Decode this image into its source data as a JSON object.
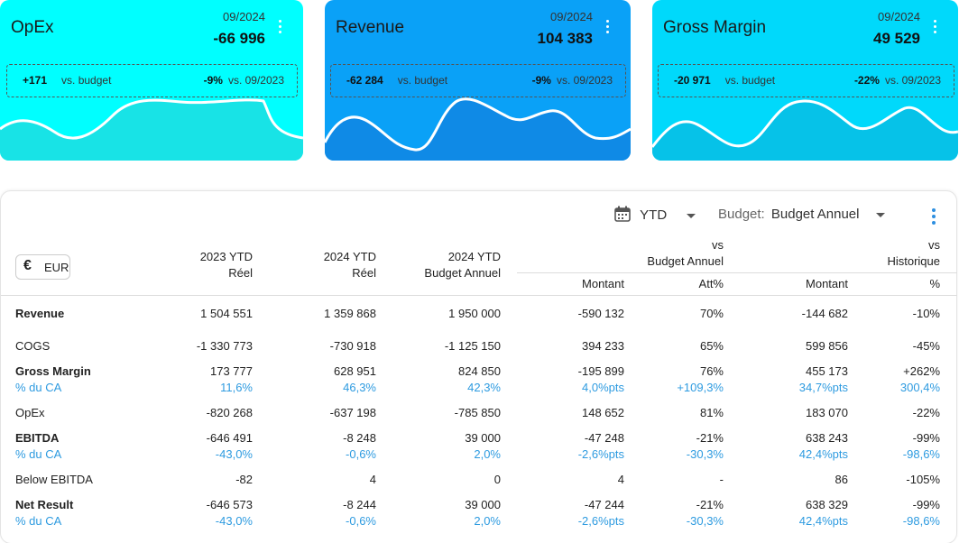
{
  "cards": [
    {
      "title": "OpEx",
      "date": "09/2024",
      "value": "-66 996",
      "vs_budget_value": "+171",
      "vs_budget_label": "vs. budget",
      "vs_prev_value": "-9%",
      "vs_prev_label": "vs. 09/2023",
      "bg": "#00ffff",
      "wave": "#18e3e6"
    },
    {
      "title": "Revenue",
      "date": "09/2024",
      "value": "104 383",
      "vs_budget_value": "-62 284",
      "vs_budget_label": "vs. budget",
      "vs_prev_value": "-9%",
      "vs_prev_label": "vs. 09/2023",
      "bg": "#0aa1f7",
      "wave": "#0f8ae6"
    },
    {
      "title": "Gross Margin",
      "date": "09/2024",
      "value": "49 529",
      "vs_budget_value": "-20 971",
      "vs_budget_label": "vs. budget",
      "vs_prev_value": "-22%",
      "vs_prev_label": "vs. 09/2023",
      "bg": "#00d9fb",
      "wave": "#06c2e8"
    }
  ],
  "toolbar": {
    "period": "YTD",
    "budget_label": "Budget:",
    "budget_value": "Budget Annuel"
  },
  "currency": {
    "symbol": "€",
    "code": "EUR"
  },
  "headers": {
    "col1": [
      "2023 YTD",
      "Réel"
    ],
    "col2": [
      "2024 YTD",
      "Réel"
    ],
    "col3": [
      "2024 YTD",
      "Budget Annuel"
    ],
    "group1": [
      "vs",
      "Budget Annuel"
    ],
    "group2": [
      "vs",
      "Historique"
    ],
    "sub": [
      "Montant",
      "Att%",
      "Montant",
      "%"
    ]
  },
  "rows": [
    {
      "label": "Revenue",
      "bold": true,
      "values": [
        "1 504 551",
        "1 359 868",
        "1 950 000",
        "-590 132",
        "70%",
        "-144 682",
        "-10%"
      ]
    },
    {
      "label": "COGS",
      "bold": false,
      "values": [
        "-1 330 773",
        "-730 918",
        "-1 125 150",
        "394 233",
        "65%",
        "599 856",
        "-45%"
      ]
    },
    {
      "label": "Gross Margin",
      "bold": true,
      "values": [
        "173 777",
        "628 951",
        "824 850",
        "-195 899",
        "76%",
        "455 173",
        "+262%"
      ],
      "sub": {
        "label": "% du CA",
        "values": [
          "11,6%",
          "46,3%",
          "42,3%",
          "4,0%pts",
          "+109,3%",
          "34,7%pts",
          "300,4%"
        ]
      }
    },
    {
      "label": "OpEx",
      "bold": false,
      "values": [
        "-820 268",
        "-637 198",
        "-785 850",
        "148 652",
        "81%",
        "183 070",
        "-22%"
      ]
    },
    {
      "label": "EBITDA",
      "bold": true,
      "values": [
        "-646 491",
        "-8 248",
        "39 000",
        "-47 248",
        "-21%",
        "638 243",
        "-99%"
      ],
      "sub": {
        "label": "% du CA",
        "values": [
          "-43,0%",
          "-0,6%",
          "2,0%",
          "-2,6%pts",
          "-30,3%",
          "42,4%pts",
          "-98,6%"
        ]
      }
    },
    {
      "label": "Below EBITDA",
      "bold": false,
      "values": [
        "-82",
        "4",
        "0",
        "4",
        "-",
        "86",
        "-105%"
      ]
    },
    {
      "label": "Net Result",
      "bold": true,
      "values": [
        "-646 573",
        "-8 244",
        "39 000",
        "-47 244",
        "-21%",
        "638 329",
        "-99%"
      ],
      "sub": {
        "label": "% du CA",
        "values": [
          "-43,0%",
          "-0,6%",
          "2,0%",
          "-2,6%pts",
          "-30,3%",
          "42,4%pts",
          "-98,6%"
        ]
      }
    }
  ]
}
